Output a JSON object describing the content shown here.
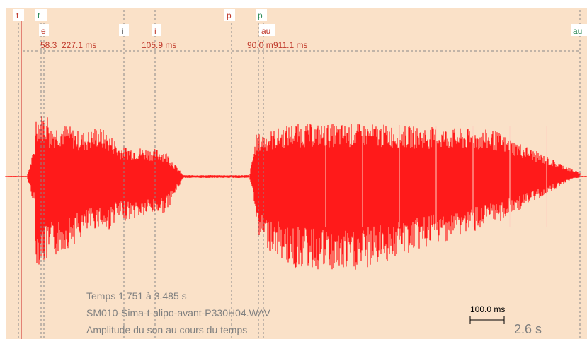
{
  "colors": {
    "background": "#FAE1C8",
    "waveform": "#FF1A1A",
    "marker_red": "#C0392B",
    "marker_green": "#2E8B57",
    "duration_text": "#C0392B",
    "info_text": "#7F7F7F",
    "gridline": "#888888"
  },
  "top_markers": [
    {
      "label": "t",
      "color": "red"
    },
    {
      "label": "t",
      "color": "green"
    },
    {
      "label": "p",
      "color": "red"
    },
    {
      "label": "p",
      "color": "green"
    },
    {
      "label": "au",
      "color": "green"
    }
  ],
  "segment_labels": [
    {
      "label": "e",
      "color": "red"
    },
    {
      "label": "i",
      "color": "gray"
    },
    {
      "label": "i",
      "color": "red"
    },
    {
      "label": "au",
      "color": "red"
    }
  ],
  "durations": [
    {
      "text": "58.3"
    },
    {
      "text": "227.1 ms"
    },
    {
      "text": "105.9 ms"
    },
    {
      "text": "90.0 m"
    },
    {
      "text": "911.1 ms"
    }
  ],
  "info": {
    "time_range": "Temps 1.751 à 3.485 s",
    "file_name": "SM010-Sima-t-alipo-avant-P330H04.WAV",
    "description": "Amplitude du son au cours du temps"
  },
  "scale_bar": {
    "label": "100.0 ms",
    "total": "2.6 s"
  }
}
